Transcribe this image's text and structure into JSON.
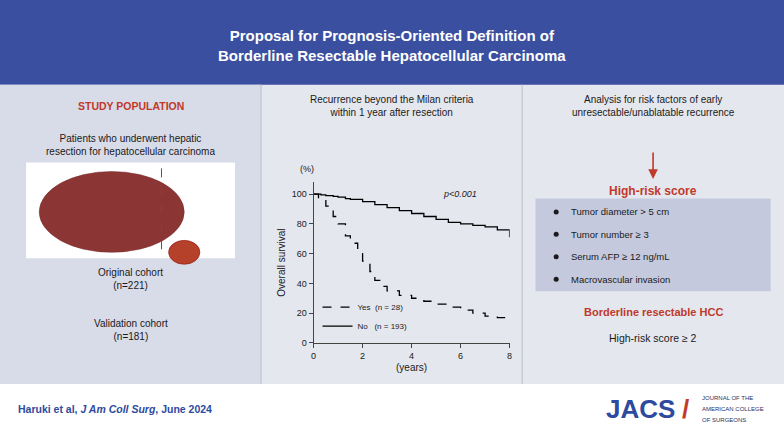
{
  "chart_data": {
    "type": "line",
    "title": "Proposal for Prognosis-Oriented Definition of\nBorderline Resectable Hepatocellular Carcinoma",
    "xlabel": "(years)",
    "ylabel": "Overall survival",
    "series": [
      {
        "name": "Yes  (n = 28)",
        "color": "#000000",
        "line_style": "dashed",
        "x": [
          0,
          0.2,
          0.5,
          0.8,
          1.0,
          1.3,
          1.5,
          1.8,
          2.0,
          2.3,
          2.5,
          2.8,
          3.0,
          3.5,
          4.0,
          4.5,
          5.0,
          5.5,
          6.0,
          6.5,
          7.0,
          7.5,
          8.0
        ],
        "values": [
          100,
          97,
          92,
          85,
          80,
          72,
          67,
          60,
          55,
          48,
          42,
          38,
          35,
          32,
          30,
          28,
          26,
          24,
          22,
          20,
          18,
          17,
          15
        ]
      },
      {
        "name": "No   (n = 193)",
        "color": "#000000",
        "line_style": "solid",
        "x": [
          0,
          0.3,
          0.5,
          0.8,
          1.0,
          1.3,
          1.5,
          2.0,
          2.5,
          3.0,
          3.5,
          4.0,
          4.5,
          5.0,
          5.5,
          6.0,
          6.5,
          7.0,
          7.5,
          8.0
        ],
        "values": [
          100,
          99.5,
          99,
          98.5,
          98,
          97,
          96.5,
          95,
          93,
          91,
          89,
          87,
          85,
          83,
          81,
          80,
          79,
          78,
          76,
          71
        ]
      }
    ],
    "xlim": [
      0,
      8
    ],
    "xticks": [
      0,
      2,
      4,
      6,
      8
    ],
    "ylim": [
      0,
      108
    ],
    "yticks": [
      0,
      20,
      40,
      60,
      80,
      100
    ],
    "grid": false,
    "legend": "lower left",
    "annotations": [
      {
        "text": "(%)"
      },
      {
        "text": "p<0.001"
      },
      {
        "text": "STUDY POPULATION",
        "color": "#c0392b"
      },
      {
        "text": "Patients who underwent hepatic\nresection for hepatocellular carcinoma"
      },
      {
        "text": "Original cohort\n(n=221)"
      },
      {
        "text": "Validation cohort\n(n=181)"
      },
      {
        "text": "Recurrence beyond the Milan criteria\nwithin 1 year after resection"
      },
      {
        "text": "Analysis for risk factors of early\nunresectable/unablatable recurrence"
      },
      {
        "text": "High-risk score",
        "color": "#c0392b"
      },
      {
        "text": "Tumor diameter > 5 cm"
      },
      {
        "text": "Tumor number ≥ 3"
      },
      {
        "text": "Serum AFP ≥ 12 ng/mL"
      },
      {
        "text": "Macrovascular invasion"
      },
      {
        "text": "Borderline resectable HCC",
        "color": "#c0392b"
      },
      {
        "text": "High-risk score ≥ 2"
      },
      {
        "text": "Haruki et al, ",
        "color": "#2d4a9e"
      },
      {
        "text": "J Am Coll Surg",
        "color": "#2d4a9e"
      },
      {
        "text": ", June 2024",
        "color": "#2d4a9e"
      },
      {
        "text": "JACS",
        "color": "#2d4a9e"
      },
      {
        "text": "/",
        "color": "#c0392b"
      },
      {
        "text": "JOURNAL OF THE",
        "color": "#2a3060"
      },
      {
        "text": "AMERICAN COLLEGE",
        "color": "#2a3060"
      },
      {
        "text": "OF SURGEONS",
        "color": "#2a3060"
      }
    ]
  }
}
